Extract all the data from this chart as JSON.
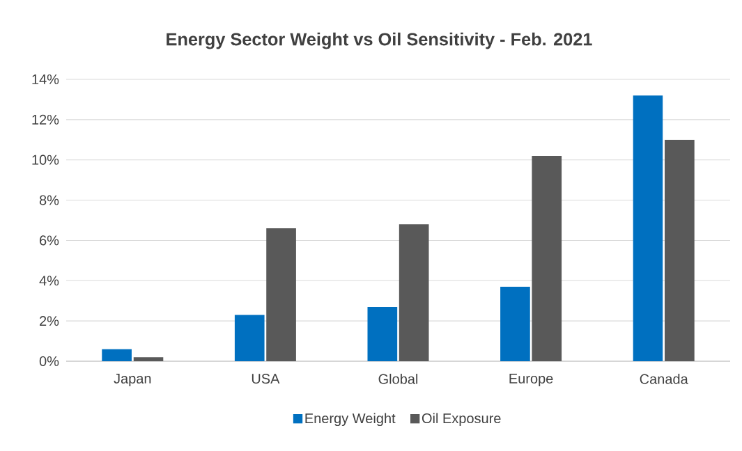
{
  "chart_data": {
    "type": "bar",
    "title": "Energy Sector Weight vs Oil Sensitivity - Feb. 2021",
    "categories": [
      "Japan",
      "USA",
      "Global",
      "Europe",
      "Canada"
    ],
    "series": [
      {
        "name": "Energy Weight",
        "color": "#0070c0",
        "values": [
          0.6,
          2.3,
          2.7,
          3.7,
          13.2
        ]
      },
      {
        "name": "Oil Exposure",
        "color": "#595959",
        "values": [
          0.2,
          6.6,
          6.8,
          10.2,
          11.0
        ]
      }
    ],
    "ylim": [
      0,
      14
    ],
    "yticks": [
      {
        "value": 0,
        "label": "0%"
      },
      {
        "value": 2,
        "label": "2%"
      },
      {
        "value": 4,
        "label": "4%"
      },
      {
        "value": 6,
        "label": "6%"
      },
      {
        "value": 8,
        "label": "8%"
      },
      {
        "value": 10,
        "label": "10%"
      },
      {
        "value": 12,
        "label": "12%"
      },
      {
        "value": 14,
        "label": "14%"
      }
    ],
    "grid": "y",
    "legend": "bottom"
  }
}
